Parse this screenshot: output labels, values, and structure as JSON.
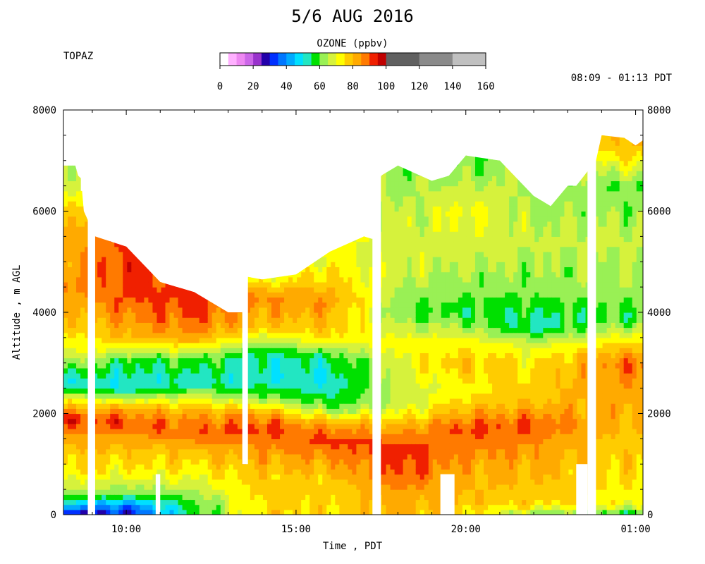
{
  "chart_data": {
    "type": "heatmap",
    "title": "5/6 AUG 2016",
    "instrument": "TOPAZ",
    "time_range": "08:09 - 01:13 PDT",
    "colorbar": {
      "title": "OZONE (ppbv)",
      "ticks": [
        0,
        20,
        40,
        60,
        80,
        100,
        120,
        140,
        160
      ],
      "range": [
        0,
        160
      ],
      "colors": [
        {
          "from": 0,
          "to": 5,
          "color": "#ffffff"
        },
        {
          "from": 5,
          "to": 10,
          "color": "#ffb0ff"
        },
        {
          "from": 10,
          "to": 15,
          "color": "#ee88f2"
        },
        {
          "from": 15,
          "to": 20,
          "color": "#cc66e8"
        },
        {
          "from": 20,
          "to": 25,
          "color": "#9933cc"
        },
        {
          "from": 25,
          "to": 30,
          "color": "#2200aa"
        },
        {
          "from": 30,
          "to": 35,
          "color": "#0030ff"
        },
        {
          "from": 35,
          "to": 40,
          "color": "#0077ff"
        },
        {
          "from": 40,
          "to": 45,
          "color": "#00aaff"
        },
        {
          "from": 45,
          "to": 50,
          "color": "#00e0ff"
        },
        {
          "from": 50,
          "to": 55,
          "color": "#22e6c2"
        },
        {
          "from": 55,
          "to": 60,
          "color": "#00e000"
        },
        {
          "from": 60,
          "to": 65,
          "color": "#99f055"
        },
        {
          "from": 65,
          "to": 70,
          "color": "#d6f23c"
        },
        {
          "from": 70,
          "to": 75,
          "color": "#ffff00"
        },
        {
          "from": 75,
          "to": 80,
          "color": "#ffcc00"
        },
        {
          "from": 80,
          "to": 85,
          "color": "#ffaa00"
        },
        {
          "from": 85,
          "to": 90,
          "color": "#ff7a00"
        },
        {
          "from": 90,
          "to": 95,
          "color": "#f02000"
        },
        {
          "from": 95,
          "to": 100,
          "color": "#c00000"
        },
        {
          "from": 100,
          "to": 120,
          "color": "#606060"
        },
        {
          "from": 120,
          "to": 140,
          "color": "#8a8a8a"
        },
        {
          "from": 140,
          "to": 160,
          "color": "#c0c0c0"
        }
      ]
    },
    "xlabel": "Time , PDT",
    "ylabel": "Altitude , m AGL",
    "xlim": [
      "08:09",
      "01:13"
    ],
    "ylim": [
      0,
      8000
    ],
    "x_ticks": [
      {
        "time": "10:00",
        "label": "10:00"
      },
      {
        "time": "15:00",
        "label": "15:00"
      },
      {
        "time": "20:00",
        "label": "20:00"
      },
      {
        "time": "01:00",
        "label": "01:00"
      }
    ],
    "y_ticks_left": [
      0,
      2000,
      4000,
      6000,
      8000
    ],
    "y_ticks_right": [
      0,
      2000,
      4000,
      6000,
      8000
    ],
    "profile_top": [
      [
        "08:09",
        6900
      ],
      [
        "08:30",
        6900
      ],
      [
        "08:35",
        6700
      ],
      [
        "08:40",
        6650
      ],
      [
        "08:45",
        6000
      ],
      [
        "09:05",
        5500
      ],
      [
        "10:00",
        5300
      ],
      [
        "11:00",
        4600
      ],
      [
        "12:00",
        4400
      ],
      [
        "12:30",
        4200
      ],
      [
        "13:00",
        4000
      ],
      [
        "13:25",
        4000
      ],
      [
        "13:35",
        4700
      ],
      [
        "14:00",
        4650
      ],
      [
        "15:00",
        4750
      ],
      [
        "16:00",
        5200
      ],
      [
        "17:00",
        5500
      ],
      [
        "17:15",
        5450
      ],
      [
        "17:30",
        6700
      ],
      [
        "18:00",
        6900
      ],
      [
        "19:00",
        6600
      ],
      [
        "19:30",
        6700
      ],
      [
        "20:00",
        7100
      ],
      [
        "21:00",
        7000
      ],
      [
        "22:00",
        6300
      ],
      [
        "22:30",
        6100
      ],
      [
        "23:00",
        6500
      ],
      [
        "23:15",
        6500
      ],
      [
        "23:50",
        7000
      ],
      [
        "24:00",
        7500
      ],
      [
        "24:40",
        7450
      ],
      [
        "25:00",
        7300
      ],
      [
        "25:13",
        7400
      ]
    ],
    "data_gaps": [
      {
        "start": "08:52",
        "end": "09:05",
        "bottom": 0,
        "top": "profile"
      },
      {
        "start": "10:52",
        "end": "11:00",
        "bottom": 0,
        "top": 800
      },
      {
        "start": "13:25",
        "end": "13:35",
        "bottom": 1000,
        "top": "profile"
      },
      {
        "start": "17:15",
        "end": "17:30",
        "bottom": 0,
        "top": "profile"
      },
      {
        "start": "19:15",
        "end": "19:40",
        "bottom": 0,
        "top": 800
      },
      {
        "start": "23:15",
        "end": "23:35",
        "bottom": 0,
        "top": 1000
      },
      {
        "start": "23:35",
        "end": "23:50",
        "bottom": 0,
        "top": "profile"
      }
    ],
    "ozone_layers": [
      {
        "time": "08:30",
        "z_ppbv": [
          [
            0,
            25
          ],
          [
            200,
            45
          ],
          [
            400,
            62
          ],
          [
            800,
            74
          ],
          [
            1500,
            82
          ],
          [
            1900,
            93
          ],
          [
            2200,
            76
          ],
          [
            2600,
            50
          ],
          [
            3200,
            70
          ],
          [
            4500,
            86
          ],
          [
            5500,
            82
          ],
          [
            6500,
            68
          ]
        ]
      },
      {
        "time": "10:00",
        "z_ppbv": [
          [
            0,
            30
          ],
          [
            200,
            38
          ],
          [
            400,
            60
          ],
          [
            800,
            72
          ],
          [
            1500,
            82
          ],
          [
            1800,
            92
          ],
          [
            2100,
            82
          ],
          [
            2500,
            50
          ],
          [
            3000,
            55
          ],
          [
            3500,
            80
          ],
          [
            4200,
            90
          ],
          [
            5000,
            92
          ]
        ]
      },
      {
        "time": "12:00",
        "z_ppbv": [
          [
            0,
            55
          ],
          [
            300,
            60
          ],
          [
            800,
            72
          ],
          [
            1300,
            80
          ],
          [
            1600,
            90
          ],
          [
            2000,
            82
          ],
          [
            2300,
            70
          ],
          [
            2600,
            52
          ],
          [
            3100,
            60
          ],
          [
            3500,
            84
          ],
          [
            4000,
            91
          ]
        ]
      },
      {
        "time": "14:00",
        "z_ppbv": [
          [
            0,
            76
          ],
          [
            800,
            78
          ],
          [
            1300,
            85
          ],
          [
            1700,
            92
          ],
          [
            2000,
            85
          ],
          [
            2300,
            62
          ],
          [
            2700,
            50
          ],
          [
            3200,
            54
          ],
          [
            3700,
            78
          ],
          [
            4300,
            86
          ],
          [
            4700,
            70
          ]
        ]
      },
      {
        "time": "16:00",
        "z_ppbv": [
          [
            0,
            76
          ],
          [
            600,
            76
          ],
          [
            1100,
            84
          ],
          [
            1500,
            92
          ],
          [
            1800,
            82
          ],
          [
            2100,
            60
          ],
          [
            2600,
            50
          ],
          [
            3100,
            55
          ],
          [
            3500,
            76
          ],
          [
            4200,
            84
          ],
          [
            5000,
            72
          ]
        ]
      },
      {
        "time": "18:00",
        "z_ppbv": [
          [
            0,
            80
          ],
          [
            400,
            84
          ],
          [
            900,
            92
          ],
          [
            1300,
            94
          ],
          [
            1600,
            85
          ],
          [
            2200,
            65
          ],
          [
            2800,
            68
          ],
          [
            3400,
            72
          ],
          [
            4000,
            60
          ],
          [
            4800,
            68
          ],
          [
            5800,
            66
          ],
          [
            6700,
            62
          ]
        ]
      },
      {
        "time": "20:00",
        "z_ppbv": [
          [
            0,
            76
          ],
          [
            400,
            80
          ],
          [
            900,
            82
          ],
          [
            1400,
            88
          ],
          [
            1700,
            92
          ],
          [
            2100,
            80
          ],
          [
            2500,
            72
          ],
          [
            3000,
            80
          ],
          [
            3500,
            70
          ],
          [
            4000,
            57
          ],
          [
            5000,
            66
          ],
          [
            6000,
            72
          ],
          [
            7000,
            60
          ]
        ]
      },
      {
        "time": "22:00",
        "z_ppbv": [
          [
            0,
            60
          ],
          [
            200,
            76
          ],
          [
            700,
            80
          ],
          [
            1300,
            84
          ],
          [
            1800,
            90
          ],
          [
            2200,
            80
          ],
          [
            2800,
            76
          ],
          [
            3300,
            70
          ],
          [
            3700,
            52
          ],
          [
            4500,
            62
          ],
          [
            5500,
            66
          ],
          [
            6200,
            64
          ]
        ]
      },
      {
        "time": "24:30",
        "z_ppbv": [
          [
            0,
            55
          ],
          [
            200,
            72
          ],
          [
            800,
            76
          ],
          [
            1500,
            78
          ],
          [
            2000,
            82
          ],
          [
            2600,
            84
          ],
          [
            3000,
            88
          ],
          [
            3500,
            72
          ],
          [
            3900,
            58
          ],
          [
            4500,
            64
          ],
          [
            5500,
            66
          ],
          [
            6500,
            60
          ],
          [
            7300,
            80
          ]
        ]
      }
    ]
  }
}
